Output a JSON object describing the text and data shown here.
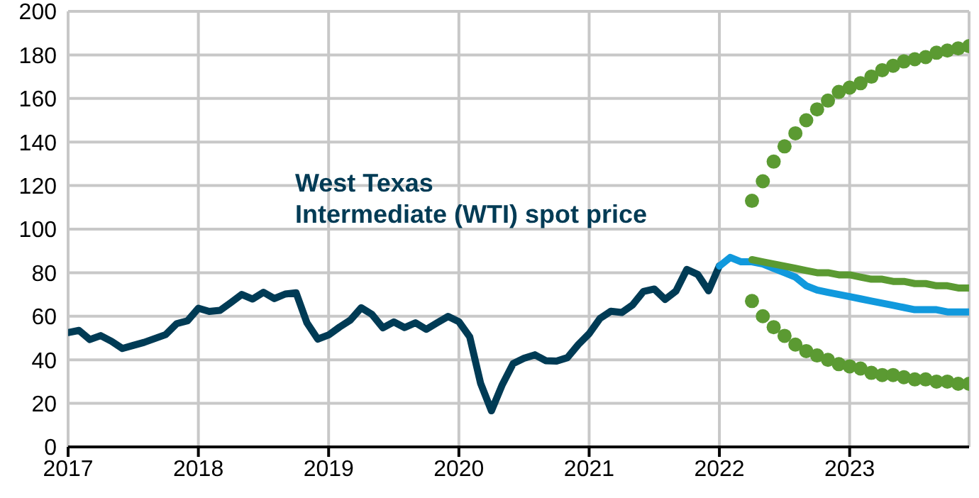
{
  "chart_data": {
    "type": "line",
    "xlim": [
      "2017-01",
      "2023-12"
    ],
    "xticks": [
      "2017",
      "2018",
      "2019",
      "2020",
      "2021",
      "2022",
      "2023"
    ],
    "ylim": [
      0,
      200
    ],
    "yticks": [
      0,
      20,
      40,
      60,
      80,
      100,
      120,
      140,
      160,
      180,
      200
    ],
    "grid": true,
    "legend": false,
    "series": [
      {
        "name": "West Texas Intermediate (WTI) spot price",
        "color": "#003b55",
        "x": [
          "2017-01",
          "2017-02",
          "2017-03",
          "2017-04",
          "2017-05",
          "2017-06",
          "2017-07",
          "2017-08",
          "2017-09",
          "2017-10",
          "2017-11",
          "2017-12",
          "2018-01",
          "2018-02",
          "2018-03",
          "2018-04",
          "2018-05",
          "2018-06",
          "2018-07",
          "2018-08",
          "2018-09",
          "2018-10",
          "2018-11",
          "2018-12",
          "2019-01",
          "2019-02",
          "2019-03",
          "2019-04",
          "2019-05",
          "2019-06",
          "2019-07",
          "2019-08",
          "2019-09",
          "2019-10",
          "2019-11",
          "2019-12",
          "2020-01",
          "2020-02",
          "2020-03",
          "2020-04",
          "2020-05",
          "2020-06",
          "2020-07",
          "2020-08",
          "2020-09",
          "2020-10",
          "2020-11",
          "2020-12",
          "2021-01",
          "2021-02",
          "2021-03",
          "2021-04",
          "2021-05",
          "2021-06",
          "2021-07",
          "2021-08",
          "2021-09",
          "2021-10",
          "2021-11",
          "2021-12",
          "2022-01"
        ],
        "values": [
          52.5,
          53.5,
          49.3,
          51.1,
          48.5,
          45.2,
          46.6,
          48.0,
          49.8,
          51.6,
          56.6,
          57.9,
          63.7,
          62.2,
          62.7,
          66.3,
          70.0,
          67.9,
          71.0,
          68.1,
          70.2,
          70.8,
          57.0,
          49.5,
          51.4,
          55.0,
          58.2,
          63.9,
          60.8,
          54.7,
          57.4,
          54.8,
          57.0,
          54.0,
          57.0,
          59.9,
          57.5,
          50.5,
          29.2,
          16.6,
          28.6,
          38.3,
          40.7,
          42.3,
          39.6,
          39.4,
          41.0,
          47.0,
          52.0,
          59.0,
          62.3,
          61.7,
          65.2,
          71.4,
          72.5,
          67.7,
          71.6,
          81.5,
          79.2,
          71.7,
          83.2
        ]
      },
      {
        "color": "#1199dd",
        "x": [
          "2022-01",
          "2022-02",
          "2022-03",
          "2022-04",
          "2022-05",
          "2022-06",
          "2022-07",
          "2022-08",
          "2022-09",
          "2022-10",
          "2022-11",
          "2022-12",
          "2023-01",
          "2023-02",
          "2023-03",
          "2023-04",
          "2023-05",
          "2023-06",
          "2023-07",
          "2023-08",
          "2023-09",
          "2023-10",
          "2023-11",
          "2023-12"
        ],
        "values": [
          83,
          87,
          85,
          85,
          84,
          82,
          80,
          78,
          74,
          72,
          71,
          70,
          69,
          68,
          67,
          66,
          65,
          64,
          63,
          63,
          63,
          62,
          62,
          62
        ]
      },
      {
        "color": "#5b9a32",
        "x": [
          "2022-04",
          "2022-05",
          "2022-06",
          "2022-07",
          "2022-08",
          "2022-09",
          "2022-10",
          "2022-11",
          "2022-12",
          "2023-01",
          "2023-02",
          "2023-03",
          "2023-04",
          "2023-05",
          "2023-06",
          "2023-07",
          "2023-08",
          "2023-09",
          "2023-10",
          "2023-11",
          "2023-12"
        ],
        "values": [
          86,
          85,
          84,
          83,
          82,
          81,
          80,
          80,
          79,
          79,
          78,
          77,
          77,
          76,
          76,
          75,
          75,
          74,
          74,
          73,
          73
        ]
      },
      {
        "type": "scatter",
        "color": "#5b9a32",
        "marker": "circle",
        "x": [
          "2022-04",
          "2022-05",
          "2022-06",
          "2022-07",
          "2022-08",
          "2022-09",
          "2022-10",
          "2022-11",
          "2022-12",
          "2023-01",
          "2023-02",
          "2023-03",
          "2023-04",
          "2023-05",
          "2023-06",
          "2023-07",
          "2023-08",
          "2023-09",
          "2023-10",
          "2023-11",
          "2023-12"
        ],
        "values": [
          113,
          122,
          131,
          138,
          144,
          150,
          155,
          159,
          163,
          165,
          167,
          170,
          173,
          175,
          177,
          178,
          179,
          181,
          182,
          183,
          184
        ]
      },
      {
        "type": "scatter",
        "color": "#5b9a32",
        "marker": "circle",
        "x": [
          "2022-04",
          "2022-05",
          "2022-06",
          "2022-07",
          "2022-08",
          "2022-09",
          "2022-10",
          "2022-11",
          "2022-12",
          "2023-01",
          "2023-02",
          "2023-03",
          "2023-04",
          "2023-05",
          "2023-06",
          "2023-07",
          "2023-08",
          "2023-09",
          "2023-10",
          "2023-11",
          "2023-12"
        ],
        "values": [
          67,
          60,
          55,
          51,
          47,
          44,
          42,
          40,
          38,
          37,
          36,
          34,
          33,
          33,
          32,
          31,
          31,
          30,
          30,
          29,
          29
        ]
      }
    ]
  }
}
